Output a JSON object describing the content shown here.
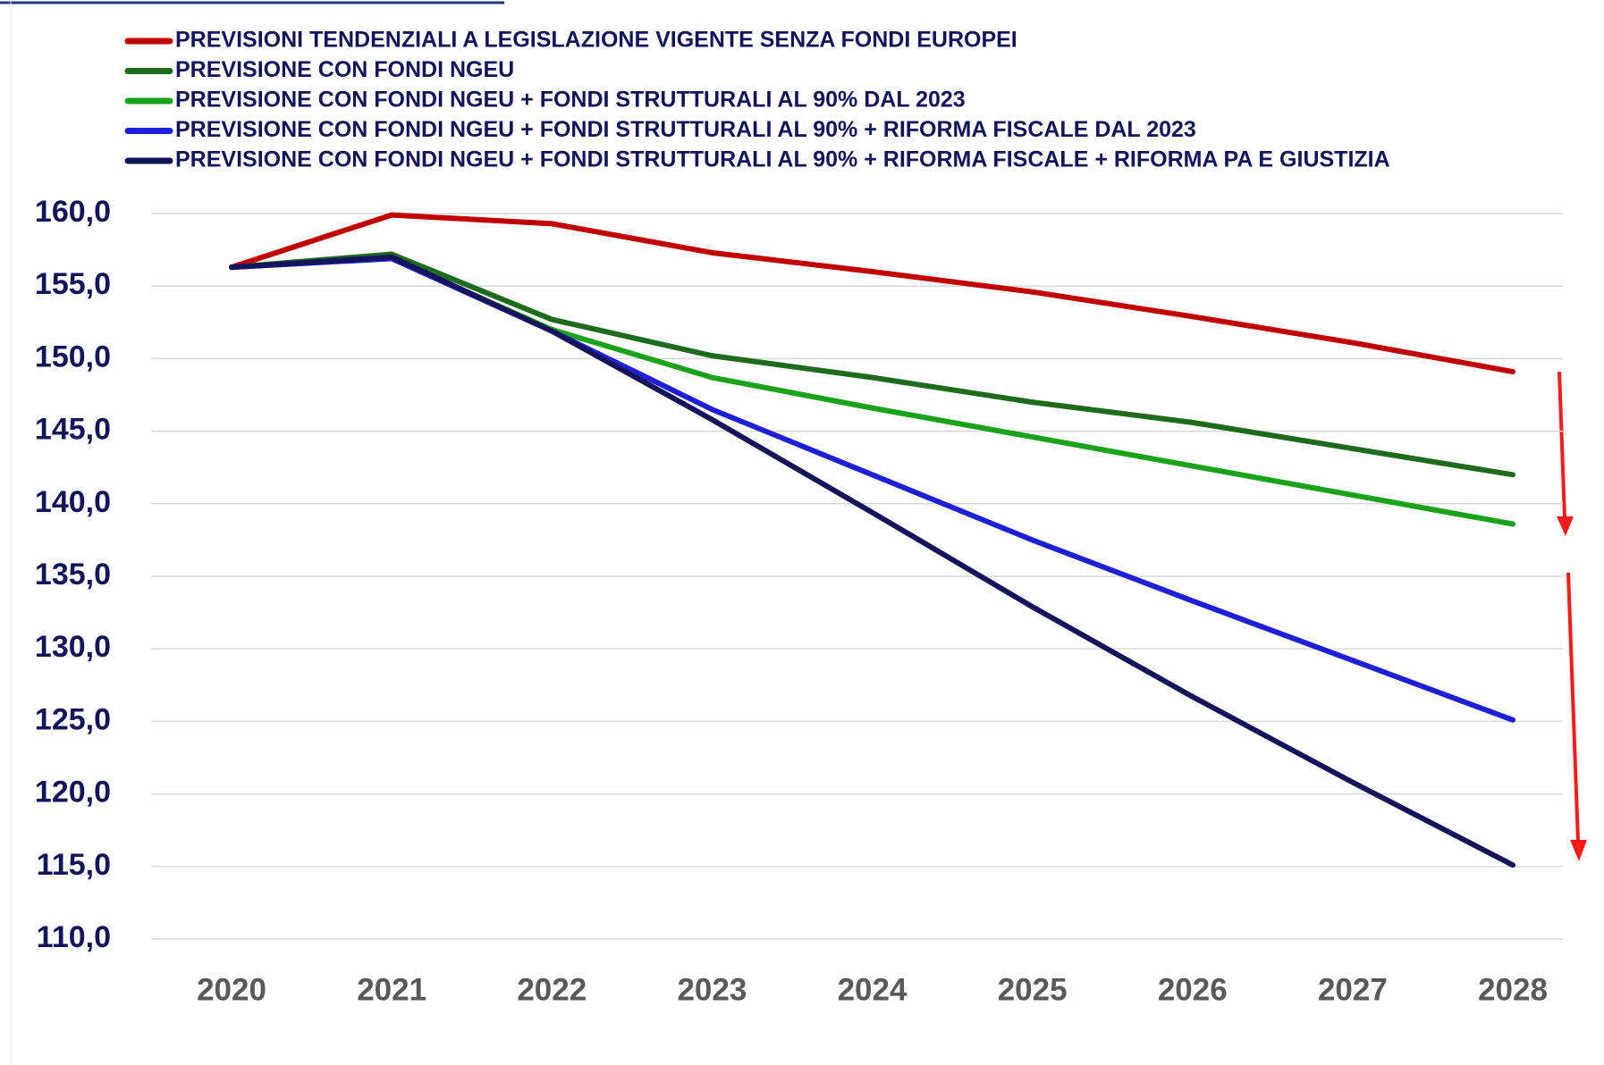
{
  "chart_data": {
    "type": "line",
    "categories": [
      "2020",
      "2021",
      "2022",
      "2023",
      "2024",
      "2025",
      "2026",
      "2027",
      "2028"
    ],
    "series": [
      {
        "name": "PREVISIONI TENDENZIALI A LEGISLAZIONE VIGENTE SENZA FONDI EUROPEI",
        "color": "#c00000",
        "values": [
          156.3,
          159.9,
          159.3,
          157.3,
          156.0,
          154.6,
          152.9,
          151.1,
          149.1
        ]
      },
      {
        "name": "PREVISIONE CON FONDI NGEU",
        "color": "#1e6b1e",
        "values": [
          156.3,
          157.2,
          152.7,
          150.2,
          148.7,
          147.0,
          145.6,
          143.8,
          142.0
        ]
      },
      {
        "name": "PREVISIONE CON FONDI NGEU + FONDI STRUTTURALI AL 90% DAL 2023",
        "color": "#1aa31a",
        "values": [
          156.3,
          156.9,
          152.0,
          148.7,
          146.6,
          144.6,
          142.6,
          140.6,
          138.6
        ]
      },
      {
        "name": "PREVISIONE CON FONDI NGEU + FONDI STRUTTURALI AL 90% + RIFORMA FISCALE DAL 2023",
        "color": "#1f1fd6",
        "values": [
          156.3,
          156.9,
          151.9,
          146.5,
          142.0,
          137.5,
          133.3,
          129.2,
          125.1
        ]
      },
      {
        "name": "PREVISIONE CON FONDI NGEU + FONDI STRUTTURALI AL 90% + RIFORMA FISCALE + RIFORMA PA E GIUSTIZIA",
        "color": "#14145a",
        "values": [
          156.3,
          157.0,
          151.9,
          145.8,
          139.4,
          132.9,
          126.7,
          120.8,
          115.1
        ]
      }
    ],
    "ylim": [
      110,
      160
    ],
    "yticks": [
      {
        "value": 110,
        "label": "110,0"
      },
      {
        "value": 115,
        "label": "115,0"
      },
      {
        "value": 120,
        "label": "120,0"
      },
      {
        "value": 125,
        "label": "125,0"
      },
      {
        "value": 130,
        "label": "130,0"
      },
      {
        "value": 135,
        "label": "135,0"
      },
      {
        "value": 140,
        "label": "140,0"
      },
      {
        "value": 145,
        "label": "145,0"
      },
      {
        "value": 150,
        "label": "150,0"
      },
      {
        "value": 155,
        "label": "155,0"
      },
      {
        "value": 160,
        "label": "160,0"
      }
    ],
    "grid": true,
    "legend": "top"
  }
}
